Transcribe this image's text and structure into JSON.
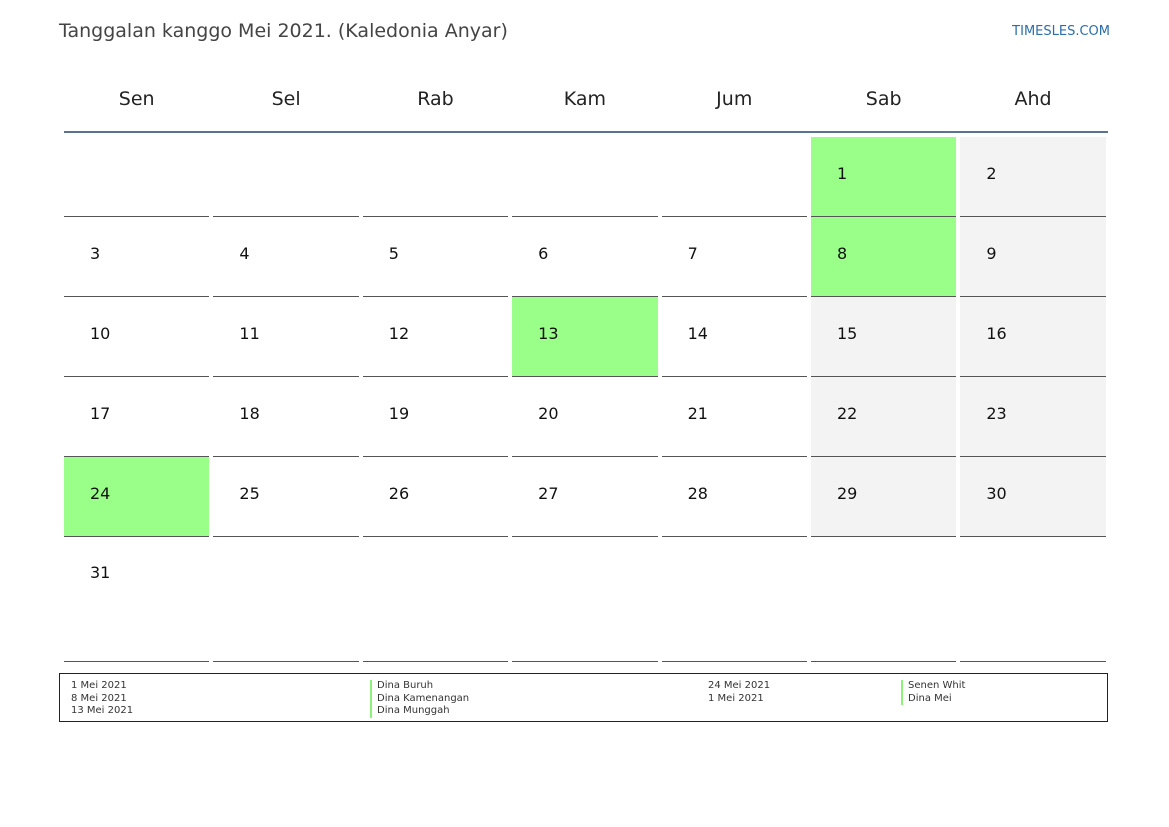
{
  "header": {
    "title": "Tanggalan kanggo Mei 2021. (Kaledonia Anyar)",
    "brand": "TIMESLES.COM"
  },
  "days_of_week": [
    "Sen",
    "Sel",
    "Rab",
    "Kam",
    "Jum",
    "Sab",
    "Ahd"
  ],
  "weeks": [
    [
      {
        "d": ""
      },
      {
        "d": ""
      },
      {
        "d": ""
      },
      {
        "d": ""
      },
      {
        "d": ""
      },
      {
        "d": "1",
        "type": "holiday"
      },
      {
        "d": "2",
        "type": "weekend"
      }
    ],
    [
      {
        "d": "3"
      },
      {
        "d": "4"
      },
      {
        "d": "5"
      },
      {
        "d": "6"
      },
      {
        "d": "7"
      },
      {
        "d": "8",
        "type": "holiday"
      },
      {
        "d": "9",
        "type": "weekend"
      }
    ],
    [
      {
        "d": "10"
      },
      {
        "d": "11"
      },
      {
        "d": "12"
      },
      {
        "d": "13",
        "type": "holiday"
      },
      {
        "d": "14"
      },
      {
        "d": "15",
        "type": "weekend"
      },
      {
        "d": "16",
        "type": "weekend"
      }
    ],
    [
      {
        "d": "17"
      },
      {
        "d": "18"
      },
      {
        "d": "19"
      },
      {
        "d": "20"
      },
      {
        "d": "21"
      },
      {
        "d": "22",
        "type": "weekend"
      },
      {
        "d": "23",
        "type": "weekend"
      }
    ],
    [
      {
        "d": "24",
        "type": "holiday"
      },
      {
        "d": "25"
      },
      {
        "d": "26"
      },
      {
        "d": "27"
      },
      {
        "d": "28"
      },
      {
        "d": "29",
        "type": "weekend"
      },
      {
        "d": "30",
        "type": "weekend"
      }
    ],
    [
      {
        "d": "31"
      },
      {
        "d": ""
      },
      {
        "d": ""
      },
      {
        "d": ""
      },
      {
        "d": ""
      },
      {
        "d": ""
      },
      {
        "d": ""
      }
    ]
  ],
  "colors": {
    "holiday": "#99ff88",
    "weekend": "#f3f3f3",
    "header_line": "#5a7394",
    "brand": "#2a6fa8"
  },
  "legend": {
    "left_dates": [
      "1 Mei 2021",
      "8 Mei 2021",
      "13 Mei 2021"
    ],
    "left_names": [
      "Dina Buruh",
      "Dina Kamenangan",
      "Dina Munggah"
    ],
    "right_dates": [
      "24 Mei 2021",
      "1 Mei 2021"
    ],
    "right_names": [
      "Senen Whit",
      "Dina Mei"
    ]
  }
}
